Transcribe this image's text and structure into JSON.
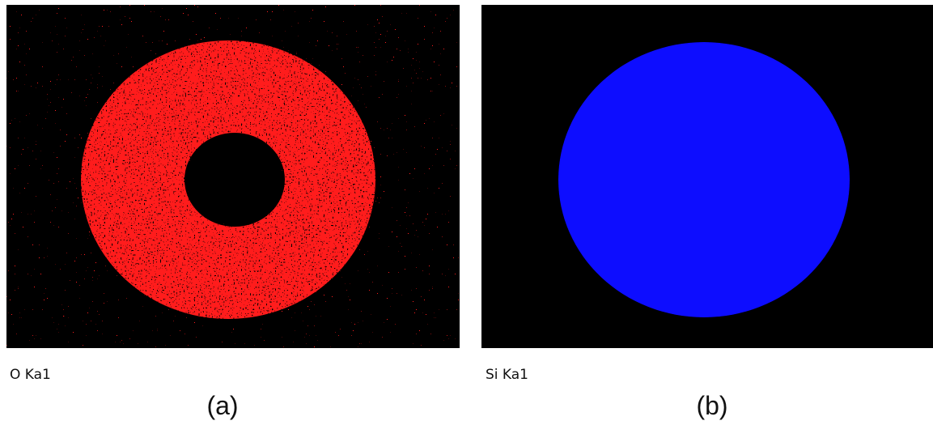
{
  "panels": [
    {
      "caption": "O Ka1",
      "label": "(a)"
    },
    {
      "caption": "Si Ka1",
      "label": "(b)"
    }
  ]
}
